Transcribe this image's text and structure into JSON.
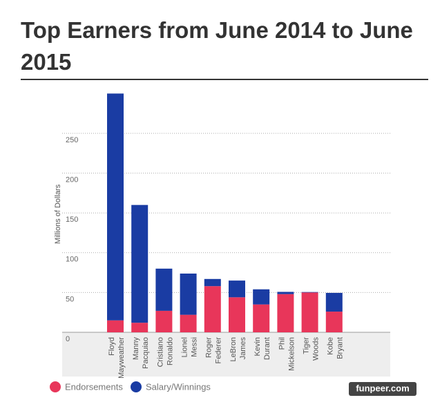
{
  "chart_data": {
    "type": "stacked_bar",
    "title": "Top Earners from June 2014 to June 2015",
    "y_label": "Millions of Dollars",
    "categories": [
      [
        "Floyd",
        "Mayweather"
      ],
      [
        "Manny",
        "Pacquiao"
      ],
      [
        "Cristiano",
        "Ronaldo"
      ],
      [
        "Lionel",
        "Messi"
      ],
      [
        "Roger",
        "Federer"
      ],
      [
        "LeBron",
        "James"
      ],
      [
        "Kevin",
        "Durant"
      ],
      [
        "Phil",
        "Mickelson"
      ],
      [
        "Tiger",
        "Woods"
      ],
      [
        "Kobe",
        "Bryant"
      ]
    ],
    "series": [
      {
        "name": "Endorsements",
        "color": "#e8365a",
        "values": [
          15,
          12,
          27,
          22,
          58,
          44,
          35,
          48,
          50,
          26
        ]
      },
      {
        "name": "Salary/Winnings",
        "color": "#1a3ca3",
        "values": [
          285,
          148,
          53,
          51.8,
          9,
          21,
          19,
          2.8,
          0.6,
          23.5
        ]
      }
    ],
    "ylim": [
      0,
      300
    ],
    "yticks": [
      0,
      50,
      100,
      150,
      200,
      250
    ],
    "grid": true,
    "watermark": "funpeer.com"
  }
}
